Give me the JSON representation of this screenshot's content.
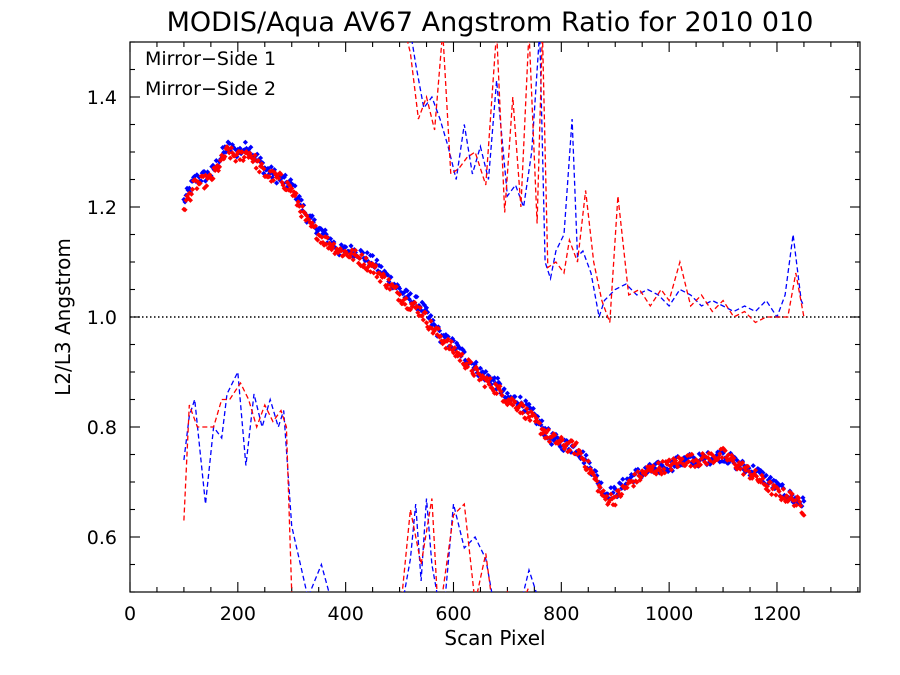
{
  "chart_data": {
    "type": "scatter",
    "title": "MODIS/Aqua AV67 Angstrom Ratio for 2010 010",
    "xlabel": "Scan Pixel",
    "ylabel": "L2/L3 Angstrom",
    "xlim": [
      0,
      1354
    ],
    "ylim": [
      0.5,
      1.5
    ],
    "xticks": [
      0,
      200,
      400,
      600,
      800,
      1000,
      1200
    ],
    "xtick_labels": [
      "0",
      "200",
      "400",
      "600",
      "800",
      "1000",
      "1200"
    ],
    "xminor_step": 50,
    "yticks": [
      0.6,
      0.8,
      1.0,
      1.2,
      1.4
    ],
    "ytick_labels": [
      "0.6",
      "0.8",
      "1.0",
      "1.2",
      "1.4"
    ],
    "yminor_step": 0.05,
    "reference_line": {
      "y": 1.0,
      "style": "dotted",
      "color": "#000000"
    },
    "legend_position": "top-left",
    "series": [
      {
        "name": "Mirror−Side 1",
        "color": "#0000ff",
        "points_style": "diamonds",
        "trend_x": [
          100,
          120,
          150,
          180,
          200,
          220,
          250,
          280,
          300,
          330,
          360,
          390,
          420,
          450,
          480,
          510,
          540,
          560,
          580,
          600,
          620,
          650,
          680,
          700,
          720,
          750,
          780,
          800,
          830,
          860,
          880,
          900,
          930,
          960,
          1000,
          1030,
          1060,
          1100,
          1130,
          1160,
          1200,
          1230,
          1250
        ],
        "trend_y": [
          1.21,
          1.25,
          1.26,
          1.31,
          1.3,
          1.31,
          1.27,
          1.25,
          1.24,
          1.18,
          1.15,
          1.12,
          1.12,
          1.1,
          1.07,
          1.04,
          1.02,
          0.99,
          0.96,
          0.95,
          0.93,
          0.9,
          0.88,
          0.85,
          0.85,
          0.82,
          0.78,
          0.77,
          0.76,
          0.72,
          0.68,
          0.68,
          0.71,
          0.72,
          0.73,
          0.74,
          0.74,
          0.75,
          0.73,
          0.72,
          0.69,
          0.67,
          0.66
        ],
        "jitter": 0.012,
        "dashed_upper_x": [
          520,
          530,
          545,
          560,
          575,
          590,
          605,
          620,
          635,
          650,
          665,
          680,
          700,
          715,
          730,
          745,
          760,
          770,
          780,
          790,
          805,
          820,
          830,
          840,
          855,
          870,
          880,
          900,
          920,
          940,
          960,
          980,
          1000,
          1020,
          1040,
          1060,
          1080,
          1100,
          1120,
          1140,
          1160,
          1180,
          1200,
          1215,
          1230,
          1245,
          1250
        ],
        "dashed_upper_y": [
          1.52,
          1.46,
          1.38,
          1.4,
          1.36,
          1.31,
          1.25,
          1.35,
          1.26,
          1.31,
          1.25,
          1.43,
          1.22,
          1.24,
          1.2,
          1.3,
          1.52,
          1.1,
          1.07,
          1.12,
          1.15,
          1.36,
          1.11,
          1.12,
          1.08,
          1.0,
          1.03,
          1.05,
          1.06,
          1.04,
          1.05,
          1.04,
          1.02,
          1.05,
          1.04,
          1.02,
          1.03,
          1.02,
          1.01,
          1.02,
          1.01,
          1.03,
          1.0,
          1.04,
          1.15,
          1.03,
          1.02
        ],
        "dashed_lower_x": [
          100,
          110,
          120,
          140,
          155,
          170,
          180,
          200,
          215,
          230,
          245,
          260,
          275,
          285,
          300,
          330,
          355,
          380,
          410,
          440,
          470,
          500,
          520,
          530,
          540,
          550,
          560,
          580,
          600,
          620,
          640,
          660,
          680,
          700,
          720,
          740,
          760
        ],
        "dashed_lower_y": [
          0.74,
          0.82,
          0.85,
          0.66,
          0.8,
          0.78,
          0.86,
          0.9,
          0.73,
          0.86,
          0.8,
          0.85,
          0.8,
          0.83,
          0.62,
          0.49,
          0.55,
          0.46,
          0.42,
          0.38,
          0.4,
          0.45,
          0.56,
          0.66,
          0.52,
          0.67,
          0.55,
          0.44,
          0.66,
          0.58,
          0.6,
          0.56,
          0.45,
          0.5,
          0.46,
          0.54,
          0.48
        ]
      },
      {
        "name": "Mirror−Side 2",
        "color": "#ff0000",
        "points_style": "diamonds",
        "trend_x": [
          100,
          120,
          150,
          180,
          200,
          220,
          250,
          280,
          300,
          330,
          360,
          390,
          420,
          450,
          480,
          510,
          540,
          560,
          580,
          600,
          620,
          650,
          680,
          700,
          720,
          750,
          780,
          800,
          830,
          860,
          880,
          900,
          930,
          960,
          1000,
          1030,
          1060,
          1100,
          1130,
          1160,
          1200,
          1230,
          1250
        ],
        "trend_y": [
          1.2,
          1.24,
          1.25,
          1.3,
          1.29,
          1.3,
          1.26,
          1.25,
          1.23,
          1.17,
          1.14,
          1.12,
          1.11,
          1.09,
          1.06,
          1.03,
          1.01,
          0.98,
          0.96,
          0.94,
          0.92,
          0.89,
          0.87,
          0.85,
          0.84,
          0.81,
          0.78,
          0.77,
          0.76,
          0.71,
          0.67,
          0.67,
          0.7,
          0.72,
          0.73,
          0.74,
          0.74,
          0.75,
          0.73,
          0.71,
          0.68,
          0.67,
          0.65
        ],
        "jitter": 0.012,
        "dashed_upper_x": [
          510,
          520,
          535,
          550,
          565,
          580,
          595,
          610,
          625,
          640,
          660,
          680,
          695,
          710,
          725,
          740,
          755,
          765,
          775,
          790,
          805,
          815,
          830,
          845,
          860,
          875,
          890,
          905,
          925,
          945,
          965,
          985,
          1000,
          1020,
          1040,
          1060,
          1080,
          1100,
          1120,
          1140,
          1160,
          1180,
          1200,
          1220,
          1235,
          1250
        ],
        "dashed_upper_y": [
          1.52,
          1.48,
          1.36,
          1.4,
          1.34,
          1.52,
          1.26,
          1.27,
          1.29,
          1.3,
          1.24,
          1.52,
          1.19,
          1.4,
          1.2,
          1.52,
          1.17,
          1.52,
          1.09,
          1.1,
          1.08,
          1.14,
          1.1,
          1.23,
          1.1,
          1.03,
          0.99,
          1.22,
          1.04,
          1.05,
          1.02,
          1.05,
          1.03,
          1.1,
          1.02,
          1.04,
          1.01,
          1.03,
          1.0,
          1.01,
          0.99,
          1.0,
          1.0,
          1.0,
          1.08,
          1.0
        ],
        "dashed_lower_x": [
          100,
          110,
          125,
          140,
          155,
          170,
          185,
          205,
          220,
          235,
          250,
          265,
          280,
          290,
          300,
          320,
          340,
          360,
          380,
          400,
          420,
          440,
          460,
          480,
          500,
          520,
          540,
          560,
          570,
          580,
          600,
          620,
          640,
          660,
          680,
          700,
          720,
          740
        ],
        "dashed_lower_y": [
          0.63,
          0.84,
          0.8,
          0.8,
          0.8,
          0.85,
          0.85,
          0.88,
          0.85,
          0.8,
          0.84,
          0.81,
          0.83,
          0.8,
          0.5,
          0.48,
          0.48,
          0.49,
          0.48,
          0.47,
          0.47,
          0.46,
          0.45,
          0.47,
          0.45,
          0.65,
          0.55,
          0.67,
          0.49,
          0.5,
          0.64,
          0.66,
          0.48,
          0.57,
          0.42,
          0.5,
          0.46,
          0.51
        ]
      }
    ]
  }
}
